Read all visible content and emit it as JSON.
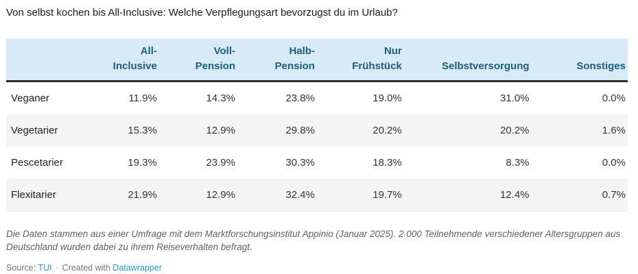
{
  "title": "Von selbst kochen bis All-Inclusive: Welche Verpflegungsart bevorzugst du im Urlaub?",
  "table": {
    "corner_label": "",
    "columns": [
      {
        "label": "All-\nInclusive"
      },
      {
        "label": "Voll-\nPension"
      },
      {
        "label": "Halb-\nPension"
      },
      {
        "label": "Nur\nFrühstück"
      },
      {
        "label": "Selbstversorgung"
      },
      {
        "label": "Sonstiges"
      }
    ],
    "rows": [
      {
        "label": "Veganer",
        "cells": [
          "11.9%",
          "14.3%",
          "23.8%",
          "19.0%",
          "31.0%",
          "0.0%"
        ]
      },
      {
        "label": "Vegetarier",
        "cells": [
          "15.3%",
          "12.9%",
          "29.8%",
          "20.2%",
          "20.2%",
          "1.6%"
        ]
      },
      {
        "label": "Pescetarier",
        "cells": [
          "19.3%",
          "23.9%",
          "30.3%",
          "18.3%",
          "8.3%",
          "0.0%"
        ]
      },
      {
        "label": "Flexitarier",
        "cells": [
          "21.9%",
          "12.9%",
          "32.4%",
          "19.7%",
          "12.4%",
          "0.7%"
        ]
      }
    ]
  },
  "footer": {
    "notes": "Die Daten stammen aus einer Umfrage mit dem Marktforschungsinstitut Appinio (Januar 2025). 2.000 Teilnehmende verschiedener Altersgruppen aus Deutschland wurden dabei zu ihrem Reiseverhalten befragt.",
    "source_prefix": "Source:",
    "source_label": "TUI",
    "separator": "·",
    "created_with": "Created with",
    "tool_label": "Datawrapper"
  },
  "colors": {
    "header_bg": "#d8eaf6",
    "header_text": "#1d5e7d",
    "zebra_row": "#f4f4f4",
    "header_border": "#2b2b2b",
    "link": "#2596d1",
    "notes_text": "#5f5f5f"
  },
  "chart_data": {
    "type": "table",
    "title": "Von selbst kochen bis All-Inclusive: Welche Verpflegungsart bevorzugst du im Urlaub?",
    "categories": [
      "All-Inclusive",
      "Voll-Pension",
      "Halb-Pension",
      "Nur Frühstück",
      "Selbstversorgung",
      "Sonstiges"
    ],
    "series": [
      {
        "name": "Veganer",
        "values": [
          11.9,
          14.3,
          23.8,
          19.0,
          31.0,
          0.0
        ]
      },
      {
        "name": "Vegetarier",
        "values": [
          15.3,
          12.9,
          29.8,
          20.2,
          20.2,
          1.6
        ]
      },
      {
        "name": "Pescetarier",
        "values": [
          19.3,
          23.9,
          30.3,
          18.3,
          8.3,
          0.0
        ]
      },
      {
        "name": "Flexitarier",
        "values": [
          21.9,
          12.9,
          32.4,
          19.7,
          12.4,
          0.7
        ]
      }
    ],
    "unit": "%",
    "notes": "Die Daten stammen aus einer Umfrage mit dem Marktforschungsinstitut Appinio (Januar 2025). 2.000 Teilnehmende verschiedener Altersgruppen aus Deutschland wurden dabei zu ihrem Reiseverhalten befragt.",
    "source": "TUI"
  }
}
